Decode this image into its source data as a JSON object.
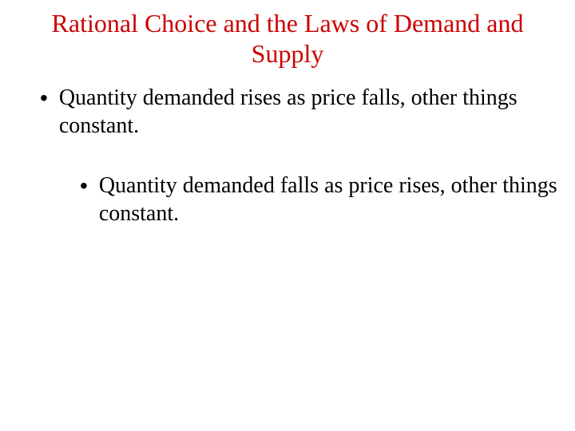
{
  "slide": {
    "title": "Rational Choice and the Laws of Demand and Supply",
    "title_color": "#cc0000",
    "title_fontsize": 32,
    "body_color": "#000000",
    "body_fontsize": 28,
    "background_color": "#ffffff",
    "font_family": "Comic Sans MS",
    "bullets": [
      {
        "level": 1,
        "text": "Quantity demanded rises as price falls, other things constant."
      },
      {
        "level": 2,
        "text": "Quantity demanded falls as price rises, other things constant."
      }
    ]
  }
}
